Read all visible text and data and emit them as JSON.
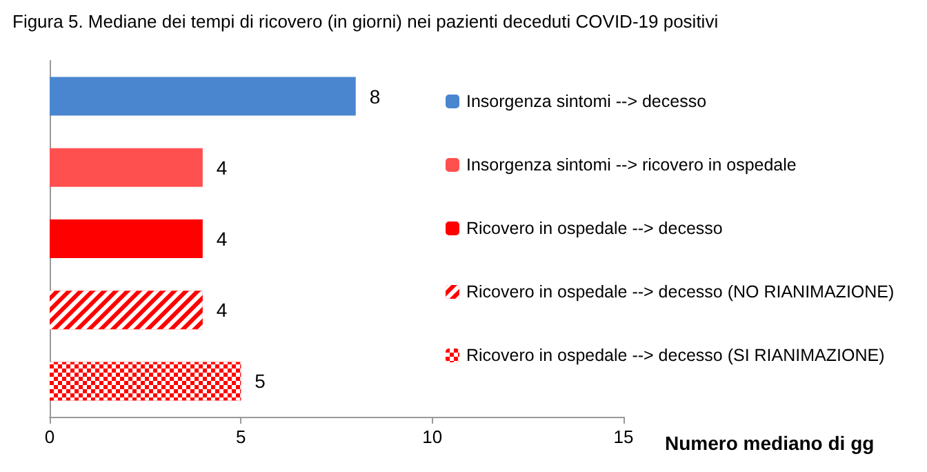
{
  "chart_data": {
    "type": "bar",
    "orientation": "horizontal",
    "title": "Figura 5. Mediane dei tempi di ricovero (in giorni) nei pazienti deceduti COVID-19 positivi",
    "xlabel": "Numero mediano di gg",
    "categories": [
      null,
      null,
      null,
      null,
      null
    ],
    "series": [
      {
        "name": "Insorgenza sintomi --> decesso",
        "color": "#4a86d0",
        "values": [
          8,
          null,
          null,
          null,
          null
        ]
      },
      {
        "name": "Insorgenza sintomi --> ricovero in ospedale",
        "color": "#ff5050",
        "values": [
          null,
          4,
          null,
          null,
          null
        ]
      },
      {
        "name": "Ricovero in ospedale --> decesso",
        "color": "#ff0000",
        "values": [
          null,
          null,
          4,
          null,
          null
        ]
      },
      {
        "name": "Ricovero in ospedale --> decesso (NO RIANIMAZIONE)",
        "color": "#ff0000",
        "values": [
          null,
          null,
          null,
          4,
          null
        ]
      },
      {
        "name": "Ricovero in ospedale --> decesso (SI RIANIMAZIONE)",
        "color": "#ff0000",
        "values": [
          null,
          null,
          null,
          null,
          5
        ]
      }
    ],
    "xlim": [
      0,
      15
    ],
    "xticks": [
      0,
      5,
      10,
      15
    ],
    "grid": false,
    "legend": "right",
    "data_labels": true
  }
}
